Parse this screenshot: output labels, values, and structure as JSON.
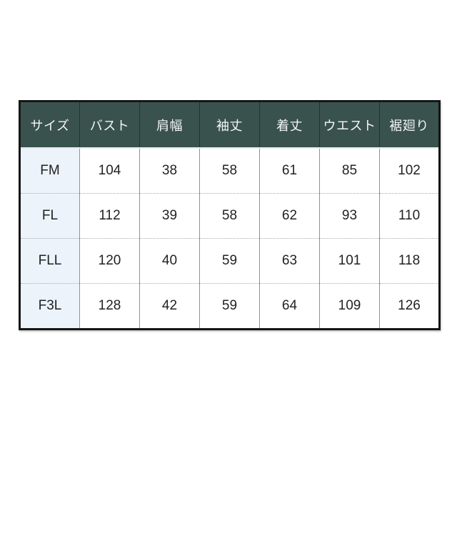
{
  "chart_data": {
    "type": "table",
    "columns": [
      "サイズ",
      "バスト",
      "肩幅",
      "袖丈",
      "着丈",
      "ウエスト",
      "裾廻り"
    ],
    "rows": [
      [
        "FM",
        "104",
        "38",
        "58",
        "61",
        "85",
        "102"
      ],
      [
        "FL",
        "112",
        "39",
        "58",
        "62",
        "93",
        "110"
      ],
      [
        "FLL",
        "120",
        "40",
        "59",
        "63",
        "101",
        "118"
      ],
      [
        "F3L",
        "128",
        "42",
        "59",
        "64",
        "109",
        "126"
      ]
    ],
    "layout": {
      "background": "#ffffff",
      "grid": "solid-columns-dotted-rows",
      "legend": "none"
    },
    "colors": {
      "header_bg": "#3a524e",
      "header_text": "#f3f6f6",
      "row_label_bg": "#edf3fb",
      "cell_text": "#222222",
      "outer_border": "#161616",
      "column_divider": "#919191",
      "row_divider_dotted": "#aaaaaa"
    }
  }
}
